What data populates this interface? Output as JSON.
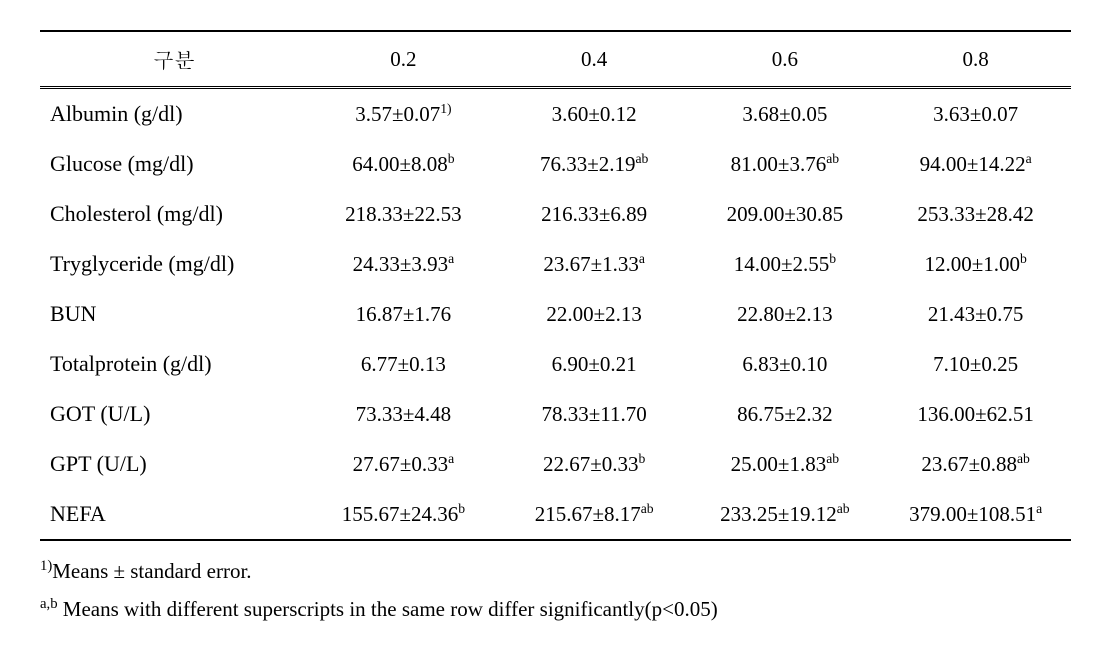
{
  "table": {
    "header_label": "구분",
    "columns": [
      "0.2",
      "0.4",
      "0.6",
      "0.8"
    ],
    "col_widths": [
      "26%",
      "18.5%",
      "18.5%",
      "18.5%",
      "18.5%"
    ],
    "border_color": "#000000",
    "background_color": "#ffffff",
    "text_color": "#000000",
    "header_fontsize": 21,
    "cell_fontsize": 21,
    "label_fontsize": 22,
    "row_padding": 12,
    "rows": [
      {
        "label": "Albumin (g/dl)",
        "cells": [
          {
            "value": "3.57±0.07",
            "sup": "1)"
          },
          {
            "value": "3.60±0.12",
            "sup": ""
          },
          {
            "value": "3.68±0.05",
            "sup": ""
          },
          {
            "value": "3.63±0.07",
            "sup": ""
          }
        ]
      },
      {
        "label": "Glucose (mg/dl)",
        "cells": [
          {
            "value": "64.00±8.08",
            "sup": "b"
          },
          {
            "value": "76.33±2.19",
            "sup": "ab"
          },
          {
            "value": "81.00±3.76",
            "sup": "ab"
          },
          {
            "value": "94.00±14.22",
            "sup": "a"
          }
        ]
      },
      {
        "label": "Cholesterol (mg/dl)",
        "cells": [
          {
            "value": "218.33±22.53",
            "sup": ""
          },
          {
            "value": "216.33±6.89",
            "sup": ""
          },
          {
            "value": "209.00±30.85",
            "sup": ""
          },
          {
            "value": "253.33±28.42",
            "sup": ""
          }
        ]
      },
      {
        "label": "Tryglyceride (mg/dl)",
        "cells": [
          {
            "value": "24.33±3.93",
            "sup": "a"
          },
          {
            "value": "23.67±1.33",
            "sup": "a"
          },
          {
            "value": "14.00±2.55",
            "sup": "b"
          },
          {
            "value": "12.00±1.00",
            "sup": "b"
          }
        ]
      },
      {
        "label": "BUN",
        "cells": [
          {
            "value": "16.87±1.76",
            "sup": ""
          },
          {
            "value": "22.00±2.13",
            "sup": ""
          },
          {
            "value": "22.80±2.13",
            "sup": ""
          },
          {
            "value": "21.43±0.75",
            "sup": ""
          }
        ]
      },
      {
        "label": "Totalprotein (g/dl)",
        "cells": [
          {
            "value": "6.77±0.13",
            "sup": ""
          },
          {
            "value": "6.90±0.21",
            "sup": ""
          },
          {
            "value": "6.83±0.10",
            "sup": ""
          },
          {
            "value": "7.10±0.25",
            "sup": ""
          }
        ]
      },
      {
        "label": "GOT (U/L)",
        "cells": [
          {
            "value": "73.33±4.48",
            "sup": ""
          },
          {
            "value": "78.33±11.70",
            "sup": ""
          },
          {
            "value": "86.75±2.32",
            "sup": ""
          },
          {
            "value": "136.00±62.51",
            "sup": ""
          }
        ]
      },
      {
        "label": "GPT (U/L)",
        "cells": [
          {
            "value": "27.67±0.33",
            "sup": "a"
          },
          {
            "value": "22.67±0.33",
            "sup": "b"
          },
          {
            "value": "25.00±1.83",
            "sup": "ab"
          },
          {
            "value": "23.67±0.88",
            "sup": "ab"
          }
        ]
      },
      {
        "label": "NEFA",
        "cells": [
          {
            "value": "155.67±24.36",
            "sup": "b"
          },
          {
            "value": "215.67±8.17",
            "sup": "ab"
          },
          {
            "value": "233.25±19.12",
            "sup": "ab"
          },
          {
            "value": "379.00±108.51",
            "sup": "a"
          }
        ]
      }
    ]
  },
  "footnotes": {
    "note1_sup": "1)",
    "note1_text": "Means ± standard error.",
    "note2_sup": "a,b",
    "note2_text": " Means with different superscripts in the same row differ significantly(p<0.05)",
    "fontsize": 21
  }
}
